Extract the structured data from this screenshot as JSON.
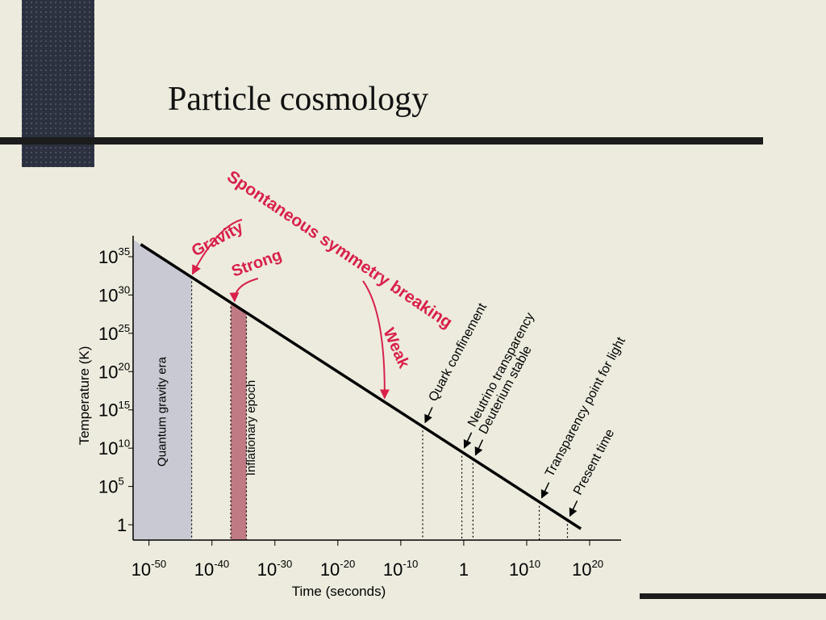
{
  "slide_title": "Particle cosmology",
  "chart_data": {
    "type": "line",
    "xlabel": "Time (seconds)",
    "ylabel": "Temperature (K)",
    "xscale": "log",
    "yscale": "log",
    "x": [
      5e-52,
      4e+18
    ],
    "values": [
      4e+36,
      0.3
    ],
    "color": "#000000",
    "xlim": [
      3e-53,
      1e+25
    ],
    "ylim": [
      0.01,
      1e+37
    ],
    "xticks": [
      {
        "value": 1e-50,
        "label": "10",
        "sup": "-50"
      },
      {
        "value": 1e-40,
        "label": "10",
        "sup": "-40"
      },
      {
        "value": 1e-30,
        "label": "10",
        "sup": "-30"
      },
      {
        "value": 1e-20,
        "label": "10",
        "sup": "-20"
      },
      {
        "value": 1e-10,
        "label": "10",
        "sup": "-10"
      },
      1,
      {
        "value": 10000000000.0,
        "label": "10",
        "sup": "10"
      },
      {
        "value": 1e+20,
        "label": "10",
        "sup": "20"
      }
    ],
    "yticks": [
      1,
      {
        "value": 100000.0,
        "label": "10",
        "sup": "5"
      },
      {
        "value": 10000000000.0,
        "label": "10",
        "sup": "10"
      },
      {
        "value": 1000000000000000.0,
        "label": "10",
        "sup": "15"
      },
      {
        "value": 1e+20,
        "label": "10",
        "sup": "20"
      },
      {
        "value": 1e+25,
        "label": "10",
        "sup": "25"
      },
      {
        "value": 1e+30,
        "label": "10",
        "sup": "30"
      },
      {
        "value": 1e+35,
        "label": "10",
        "sup": "35"
      }
    ],
    "eras": [
      {
        "label": "Quantum gravity era",
        "x_end": 6e-44,
        "color": "#c9c9d3"
      },
      {
        "label": "Inflationary epoch",
        "x_start": 1e-37,
        "x_end": 3e-35,
        "color": "#c07a84"
      }
    ],
    "events": [
      {
        "label": "Quark confinement",
        "x": 3e-07
      },
      {
        "label": "Neutrino transparency",
        "x": 0.5
      },
      {
        "label": "Deuterium stable",
        "x": 30
      },
      {
        "label": "Transparency point for light",
        "x": 1000000000000.0
      },
      {
        "label": "Present time",
        "x": 3e+16
      }
    ],
    "symmetry_breaking": {
      "title": "Spontaneous symmetry breaking",
      "color": "#d8204a",
      "forces": [
        {
          "label": "Gravity",
          "x": 6e-44
        },
        {
          "label": "Strong",
          "x": 3e-37
        },
        {
          "label": "Weak",
          "x": 2e-13
        }
      ]
    }
  }
}
